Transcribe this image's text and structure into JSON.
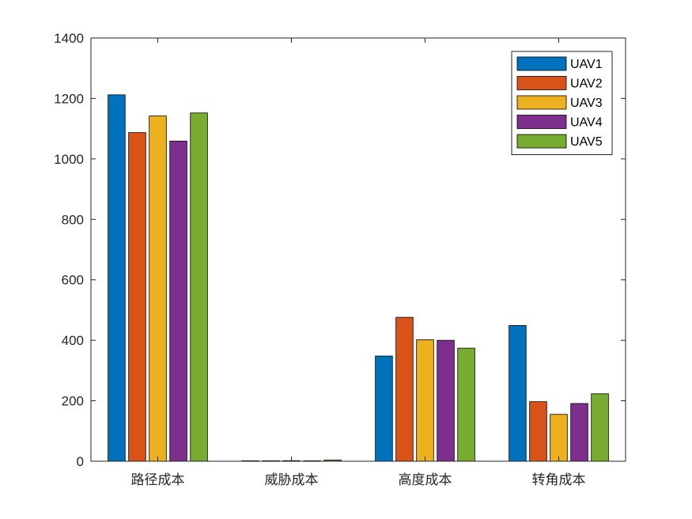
{
  "chart_data": {
    "type": "bar",
    "title": "",
    "xlabel": "",
    "ylabel": "",
    "categories": [
      "路径成本",
      "威胁成本",
      "高度成本",
      "转角成本"
    ],
    "ylim": [
      0,
      1400
    ],
    "yticks": [
      0,
      200,
      400,
      600,
      800,
      1000,
      1200,
      1400
    ],
    "grid": false,
    "legend_position": "top-right",
    "series": [
      {
        "name": "UAV1",
        "color": "#0072BD",
        "values": [
          1212,
          0,
          348,
          449
        ]
      },
      {
        "name": "UAV2",
        "color": "#D95319",
        "values": [
          1087,
          0,
          476,
          197
        ]
      },
      {
        "name": "UAV3",
        "color": "#EDB120",
        "values": [
          1142,
          2,
          402,
          155
        ]
      },
      {
        "name": "UAV4",
        "color": "#7E2F8E",
        "values": [
          1059,
          0,
          400,
          191
        ]
      },
      {
        "name": "UAV5",
        "color": "#77AC30",
        "values": [
          1152,
          4,
          374,
          223
        ]
      }
    ]
  }
}
